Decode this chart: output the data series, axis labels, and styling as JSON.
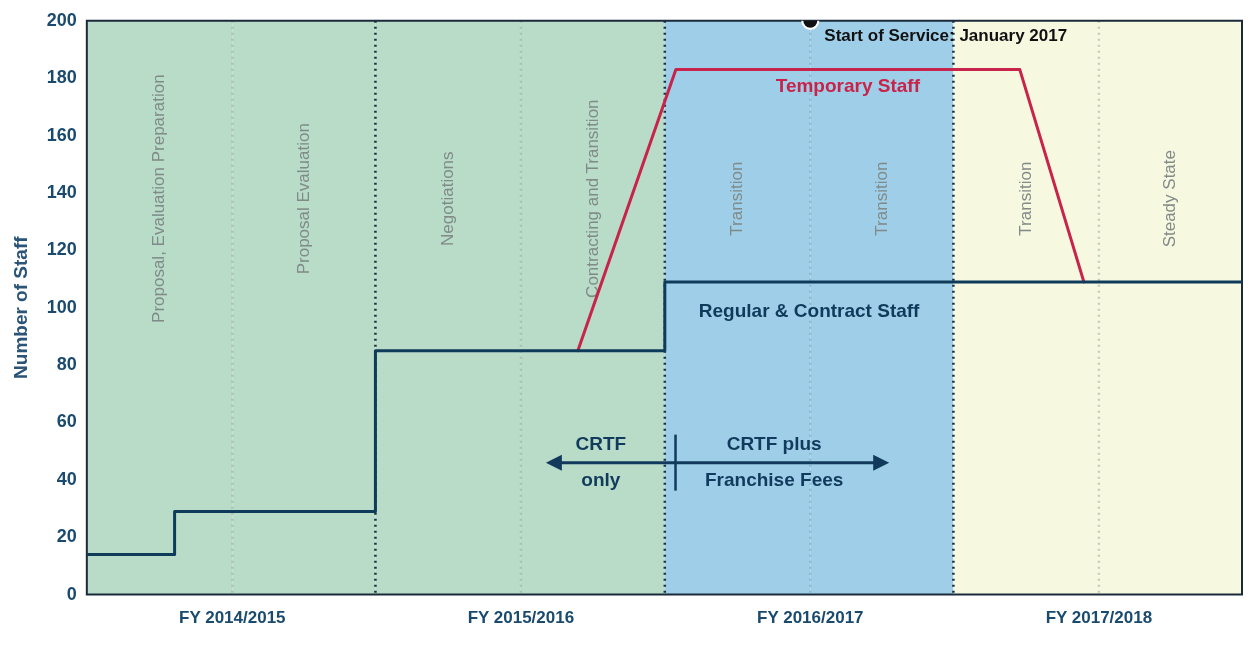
{
  "chart_data": {
    "type": "step",
    "ylabel": "Number of Staff",
    "xlim": [
      "2014-07-01",
      "2018-07-01"
    ],
    "xticks": [
      {
        "value": "2015-01-01",
        "label": "FY 2014/2015"
      },
      {
        "value": "2016-01-01",
        "label": "FY 2015/2016"
      },
      {
        "value": "2017-01-01",
        "label": "FY 2016/2017"
      },
      {
        "value": "2018-01-01",
        "label": "FY 2017/2018"
      }
    ],
    "ylim": [
      0,
      200
    ],
    "yticks": [
      0,
      20,
      40,
      60,
      80,
      100,
      120,
      140,
      160,
      180,
      200
    ],
    "grid": false,
    "legend": false,
    "marker": "none",
    "series": [
      {
        "name": "Regular & Contract Staff",
        "color": "#0f3b5a",
        "x": [
          "2014-07-01",
          "2014-10-20",
          "2015-07-01",
          "2016-07-01",
          "2018-07-01"
        ],
        "values": [
          14,
          29,
          85,
          109,
          109
        ]
      },
      {
        "name": "Temporary Staff",
        "type": "line",
        "color": "#c8234a",
        "x": [
          "2016-03-13",
          "2016-07-15",
          "2017-09-23",
          "2017-12-13"
        ],
        "values": [
          85,
          183,
          183,
          109
        ]
      },
      {
        "type": "scatter",
        "color": "#111111",
        "marker": "circle",
        "x": [
          "2017-01-01"
        ],
        "values": [
          200
        ]
      }
    ],
    "bands": [
      {
        "axis": "x",
        "from": "2014-07-01",
        "to": "2015-01-01",
        "label": "Proposal, Evaluation Preparation",
        "color": "#b8dcc8"
      },
      {
        "axis": "x",
        "from": "2015-01-01",
        "to": "2015-07-01",
        "label": "Proposal Evaluation",
        "color": "#b8dcc8"
      },
      {
        "axis": "x",
        "from": "2015-07-01",
        "to": "2016-01-01",
        "label": "Negotiations",
        "color": "#b8dcc8"
      },
      {
        "axis": "x",
        "from": "2016-01-01",
        "to": "2016-07-01",
        "label": "Contracting and Transition",
        "color": "#b8dcc8"
      },
      {
        "axis": "x",
        "from": "2016-07-01",
        "to": "2017-01-01",
        "label": "Transition",
        "color": "#9fcfe8"
      },
      {
        "axis": "x",
        "from": "2017-01-01",
        "to": "2017-07-01",
        "label": "Transition",
        "color": "#9fcfe8"
      },
      {
        "axis": "x",
        "from": "2017-07-01",
        "to": "2018-01-01",
        "label": "Transition",
        "color": "#f7f8e0"
      },
      {
        "axis": "x",
        "from": "2018-01-01",
        "to": "2018-07-01",
        "label": "Steady State",
        "color": "#f7f8e0"
      }
    ],
    "ref_lines": [
      {
        "axis": "x",
        "value": "2015-01-01",
        "color": "#a9bfb8",
        "line_style": "dotted"
      },
      {
        "axis": "x",
        "value": "2015-07-01",
        "color": "#1b2f45",
        "line_style": "dotted"
      },
      {
        "axis": "x",
        "value": "2016-01-01",
        "color": "#a9bfb8",
        "line_style": "dotted"
      },
      {
        "axis": "x",
        "value": "2016-07-01",
        "color": "#1b2f45",
        "line_style": "dotted"
      },
      {
        "axis": "x",
        "value": "2017-01-01",
        "color": "#8fb8cc",
        "line_style": "dotted"
      },
      {
        "axis": "x",
        "value": "2017-07-01",
        "color": "#1b2f45",
        "line_style": "dotted"
      },
      {
        "axis": "x",
        "value": "2018-01-01",
        "color": "#c8ccc0",
        "line_style": "dotted"
      }
    ],
    "annotations": [
      {
        "text": "Start of Service: January 2017",
        "x": "2017-01-01",
        "y": 200
      },
      "CRTF only",
      "CRTF plus Franchise Fees"
    ]
  }
}
